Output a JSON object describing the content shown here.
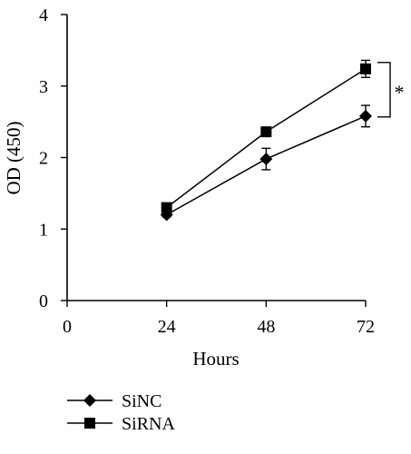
{
  "chart_data": {
    "type": "line",
    "xlabel": "Hours",
    "ylabel": "OD (450)",
    "x": [
      24,
      48,
      72
    ],
    "x_ticks": [
      "0",
      "24",
      "48",
      "72"
    ],
    "xlim": [
      0,
      72
    ],
    "y_ticks": [
      "0",
      "1",
      "2",
      "3",
      "4"
    ],
    "ylim": [
      0,
      4
    ],
    "grid": false,
    "legend_placement": "bottom-left",
    "series": [
      {
        "name": "SiNC",
        "marker": "diamond",
        "values": [
          1.2,
          1.98,
          2.58
        ],
        "errors": [
          0.03,
          0.15,
          0.15
        ]
      },
      {
        "name": "SiRNA",
        "marker": "square",
        "values": [
          1.3,
          2.36,
          3.24
        ],
        "errors": [
          0.04,
          0.04,
          0.12
        ]
      }
    ],
    "annotations": [
      {
        "text": "*",
        "between_series": [
          "SiRNA",
          "SiNC"
        ],
        "at_x": 72
      }
    ]
  }
}
